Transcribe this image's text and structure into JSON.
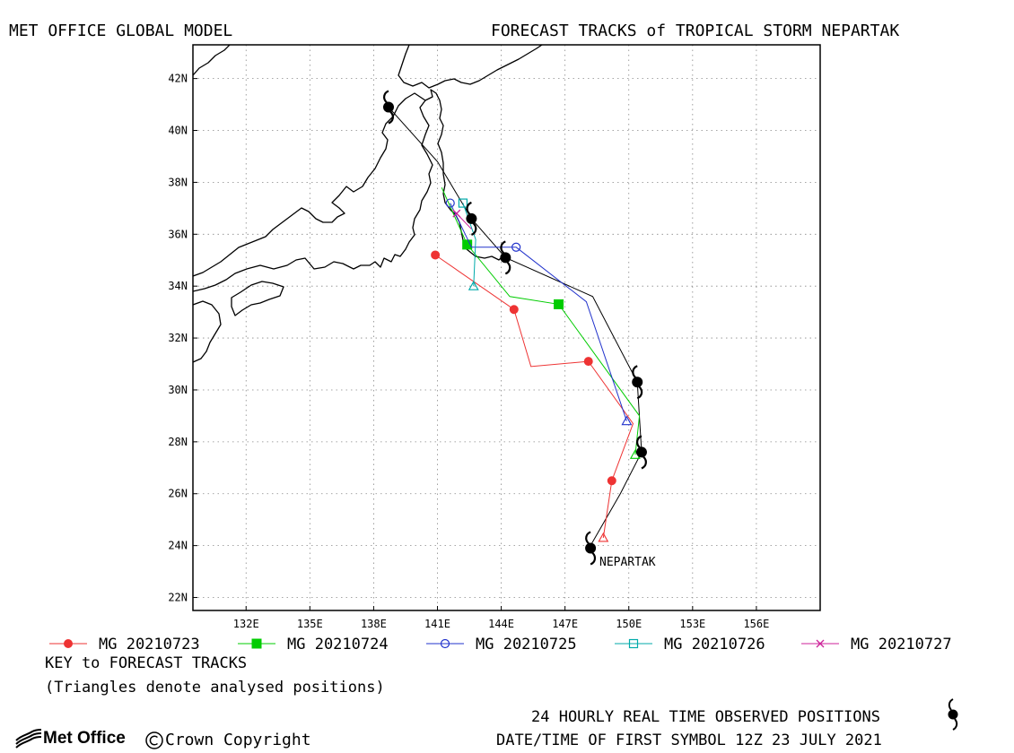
{
  "header": {
    "left_title": "MET OFFICE GLOBAL MODEL",
    "right_title": "FORECAST TRACKS of TROPICAL STORM NEPARTAK"
  },
  "map": {
    "lon_range": [
      129.5,
      159
    ],
    "lat_range": [
      21.5,
      43.3
    ],
    "lon_ticks": [
      {
        "v": 132,
        "label": "132E"
      },
      {
        "v": 135,
        "label": "135E"
      },
      {
        "v": 138,
        "label": "138E"
      },
      {
        "v": 141,
        "label": "141E"
      },
      {
        "v": 144,
        "label": "144E"
      },
      {
        "v": 147,
        "label": "147E"
      },
      {
        "v": 150,
        "label": "150E"
      },
      {
        "v": 153,
        "label": "153E"
      },
      {
        "v": 156,
        "label": "156E"
      }
    ],
    "lat_ticks": [
      {
        "v": 22,
        "label": "22N"
      },
      {
        "v": 24,
        "label": "24N"
      },
      {
        "v": 26,
        "label": "26N"
      },
      {
        "v": 28,
        "label": "28N"
      },
      {
        "v": 30,
        "label": "30N"
      },
      {
        "v": 32,
        "label": "32N"
      },
      {
        "v": 34,
        "label": "34N"
      },
      {
        "v": 36,
        "label": "36N"
      },
      {
        "v": 38,
        "label": "38N"
      },
      {
        "v": 40,
        "label": "40N"
      },
      {
        "v": 42,
        "label": "42N"
      }
    ],
    "grid": true,
    "storm_name": "NEPARTAK",
    "observed_track": [
      [
        148.2,
        24.0
      ],
      [
        149.6,
        26.0
      ],
      [
        150.6,
        27.6
      ],
      [
        150.4,
        30.3
      ],
      [
        148.3,
        33.6
      ],
      [
        144.2,
        35.1
      ],
      [
        142.6,
        36.6
      ],
      [
        141.0,
        38.8
      ],
      [
        138.7,
        40.9
      ]
    ],
    "observed_symbols": [
      [
        148.2,
        23.9
      ],
      [
        150.6,
        27.6
      ],
      [
        150.4,
        30.3
      ],
      [
        144.2,
        35.1
      ],
      [
        142.6,
        36.6
      ],
      [
        138.7,
        40.9
      ]
    ]
  },
  "chart_data": {
    "type": "line",
    "x_label": "",
    "y_label": "",
    "series": [
      {
        "name": "MG 20210723",
        "color": "#ee3333",
        "marker": "filled-circle",
        "analysed": [
          148.8,
          24.3
        ],
        "points": [
          [
            148.8,
            24.3
          ],
          [
            149.2,
            26.5
          ],
          [
            150.2,
            28.7
          ],
          [
            148.1,
            31.1
          ],
          [
            145.4,
            30.9
          ],
          [
            144.6,
            33.1
          ],
          [
            140.9,
            35.2
          ]
        ],
        "markers": [
          [
            149.2,
            26.5
          ],
          [
            148.1,
            31.1
          ],
          [
            144.6,
            33.1
          ],
          [
            140.9,
            35.2
          ]
        ]
      },
      {
        "name": "MG 20210724",
        "color": "#00cc00",
        "marker": "filled-square",
        "analysed": [
          150.3,
          27.5
        ],
        "points": [
          [
            150.3,
            27.5
          ],
          [
            150.5,
            29.0
          ],
          [
            146.7,
            33.3
          ],
          [
            144.4,
            33.6
          ],
          [
            142.4,
            35.6
          ],
          [
            141.2,
            37.8
          ]
        ],
        "markers": [
          [
            146.7,
            33.3
          ],
          [
            142.4,
            35.6
          ]
        ]
      },
      {
        "name": "MG 20210725",
        "color": "#2233cc",
        "marker": "open-circle",
        "analysed": [
          149.9,
          28.8
        ],
        "points": [
          [
            149.9,
            28.8
          ],
          [
            148.0,
            33.4
          ],
          [
            144.7,
            35.5
          ],
          [
            142.6,
            35.5
          ],
          [
            141.6,
            37.2
          ]
        ],
        "markers": [
          [
            144.7,
            35.5
          ],
          [
            141.6,
            37.2
          ]
        ]
      },
      {
        "name": "MG 20210726",
        "color": "#00aaaa",
        "marker": "open-square",
        "analysed": [
          142.7,
          34.0
        ],
        "points": [
          [
            142.7,
            34.0
          ],
          [
            142.8,
            35.8
          ],
          [
            142.2,
            37.2
          ]
        ],
        "markers": [
          [
            142.2,
            37.2
          ]
        ]
      },
      {
        "name": "MG 20210727",
        "color": "#cc2299",
        "marker": "x",
        "analysed": null,
        "points": [
          [
            142.6,
            36.2
          ],
          [
            141.9,
            36.8
          ]
        ],
        "markers": [
          [
            141.9,
            36.8
          ]
        ]
      }
    ]
  },
  "footer": {
    "key_title": "KEY to FORECAST TRACKS",
    "key_note": "(Triangles denote analysed positions)",
    "observed_text": "24 HOURLY REAL TIME OBSERVED POSITIONS",
    "date_text": "DATE/TIME OF FIRST SYMBOL 12Z 23 JULY 2021",
    "logo_text": "Met Office",
    "copyright_text": "Crown Copyright"
  },
  "icons": [
    "tropical-storm-symbol-icon",
    "met-office-logo-icon",
    "copyright-icon"
  ]
}
